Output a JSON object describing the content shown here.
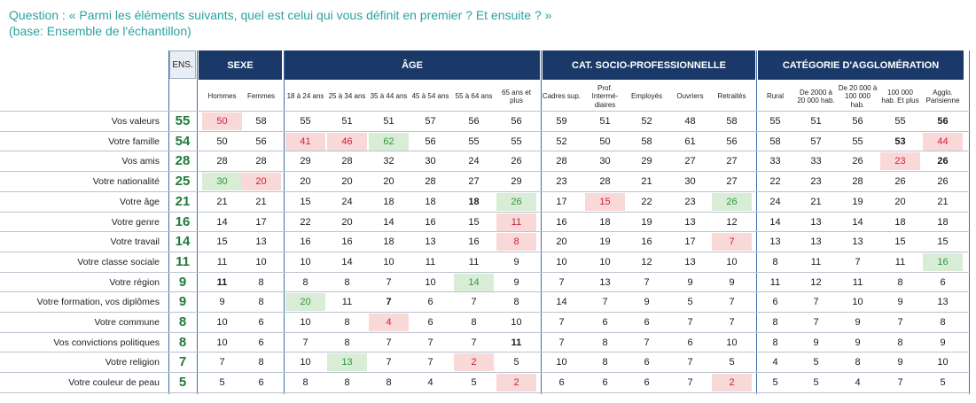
{
  "question": {
    "line1": "Question : « Parmi les éléments suivants, quel est celui qui vous définit en premier ? Et ensuite ? »",
    "line2": "(base: Ensemble de l'échantillon)"
  },
  "colors": {
    "title": "#2aa3a0",
    "header_band": "#1b3968",
    "ens_value": "#1f7a3a",
    "low": "#d1203a",
    "high": "#2f9a3c"
  },
  "ens_header": "ENS.",
  "groups": [
    {
      "label": "SEXE"
    },
    {
      "label": "ÂGE"
    },
    {
      "label": "CAT. SOCIO-PROFESSIONNELLE"
    },
    {
      "label": "CATÉGORIE D'AGGLOMÉRATION"
    }
  ],
  "subheaders": [
    "Hommes",
    "Femmes",
    "18 à 24 ans",
    "25 à 34 ans",
    "35 à 44 ans",
    "45 à 54 ans",
    "55 à 64 ans",
    "65 ans et plus",
    "Cadres sup.",
    "Prof. Intermé-diaires",
    "Employés",
    "Ouvriers",
    "Retraités",
    "Rural",
    "De 2000 à 20 000 hab.",
    "De 20 000 à 100 000 hab.",
    "100 000 hab. Et plus",
    "Agglo. Parisienne"
  ],
  "rows": [
    {
      "label": "Vos valeurs",
      "ens": "55",
      "values": [
        "50",
        "58",
        "55",
        "51",
        "51",
        "57",
        "56",
        "56",
        "59",
        "51",
        "52",
        "48",
        "58",
        "55",
        "51",
        "56",
        "55",
        "56"
      ]
    },
    {
      "label": "Votre famille",
      "ens": "54",
      "values": [
        "50",
        "56",
        "41",
        "46",
        "62",
        "56",
        "55",
        "55",
        "52",
        "50",
        "58",
        "61",
        "56",
        "58",
        "57",
        "55",
        "53",
        "44"
      ]
    },
    {
      "label": "Vos amis",
      "ens": "28",
      "values": [
        "28",
        "28",
        "29",
        "28",
        "32",
        "30",
        "24",
        "26",
        "28",
        "30",
        "29",
        "27",
        "27",
        "33",
        "33",
        "26",
        "23",
        "26"
      ]
    },
    {
      "label": "Votre nationalité",
      "ens": "25",
      "values": [
        "30",
        "20",
        "20",
        "20",
        "20",
        "28",
        "27",
        "29",
        "23",
        "28",
        "21",
        "30",
        "27",
        "22",
        "23",
        "28",
        "26",
        "26"
      ]
    },
    {
      "label": "Votre âge",
      "ens": "21",
      "values": [
        "21",
        "21",
        "15",
        "24",
        "18",
        "18",
        "18",
        "26",
        "17",
        "15",
        "22",
        "23",
        "26",
        "24",
        "21",
        "19",
        "20",
        "21"
      ]
    },
    {
      "label": "Votre genre",
      "ens": "16",
      "values": [
        "14",
        "17",
        "22",
        "20",
        "14",
        "16",
        "15",
        "11",
        "16",
        "18",
        "19",
        "13",
        "12",
        "14",
        "13",
        "14",
        "18",
        "18"
      ]
    },
    {
      "label": "Votre travail",
      "ens": "14",
      "values": [
        "15",
        "13",
        "16",
        "16",
        "18",
        "13",
        "16",
        "8",
        "20",
        "19",
        "16",
        "17",
        "7",
        "13",
        "13",
        "13",
        "15",
        "15"
      ]
    },
    {
      "label": "Votre classe sociale",
      "ens": "11",
      "values": [
        "11",
        "10",
        "10",
        "14",
        "10",
        "11",
        "11",
        "9",
        "10",
        "10",
        "12",
        "13",
        "10",
        "8",
        "11",
        "7",
        "11",
        "16"
      ]
    },
    {
      "label": "Votre région",
      "ens": "9",
      "values": [
        "11",
        "8",
        "8",
        "8",
        "7",
        "10",
        "14",
        "9",
        "7",
        "13",
        "7",
        "9",
        "9",
        "11",
        "12",
        "11",
        "8",
        "6"
      ]
    },
    {
      "label": "Votre formation, vos diplômes",
      "ens": "9",
      "values": [
        "9",
        "8",
        "20",
        "11",
        "7",
        "6",
        "7",
        "8",
        "14",
        "7",
        "9",
        "5",
        "7",
        "6",
        "7",
        "10",
        "9",
        "13"
      ]
    },
    {
      "label": "Votre commune",
      "ens": "8",
      "values": [
        "10",
        "6",
        "10",
        "8",
        "4",
        "6",
        "8",
        "10",
        "7",
        "6",
        "6",
        "7",
        "7",
        "8",
        "7",
        "9",
        "7",
        "8"
      ]
    },
    {
      "label": "Vos convictions politiques",
      "ens": "8",
      "values": [
        "10",
        "6",
        "7",
        "8",
        "7",
        "7",
        "7",
        "11",
        "7",
        "8",
        "7",
        "6",
        "10",
        "8",
        "9",
        "9",
        "8",
        "9"
      ]
    },
    {
      "label": "Votre religion",
      "ens": "7",
      "values": [
        "7",
        "8",
        "10",
        "13",
        "7",
        "7",
        "2",
        "5",
        "10",
        "8",
        "6",
        "7",
        "5",
        "4",
        "5",
        "8",
        "9",
        "10"
      ]
    },
    {
      "label": "Votre couleur de peau",
      "ens": "5",
      "values": [
        "5",
        "6",
        "8",
        "8",
        "8",
        "4",
        "5",
        "2",
        "6",
        "6",
        "6",
        "7",
        "2",
        "5",
        "5",
        "4",
        "7",
        "5"
      ]
    }
  ],
  "highlights_low": [
    [
      0,
      0
    ],
    [
      1,
      2
    ],
    [
      1,
      3
    ],
    [
      1,
      17
    ],
    [
      3,
      1
    ],
    [
      4,
      7
    ],
    [
      4,
      9
    ],
    [
      5,
      7
    ],
    [
      6,
      7
    ],
    [
      6,
      12
    ],
    [
      10,
      4
    ],
    [
      12,
      6
    ],
    [
      13,
      7
    ],
    [
      13,
      12
    ],
    [
      2,
      16
    ]
  ],
  "highlights_high": [
    [
      1,
      4
    ],
    [
      3,
      0
    ],
    [
      4,
      12
    ],
    [
      7,
      17
    ],
    [
      8,
      6
    ],
    [
      9,
      2
    ],
    [
      12,
      3
    ],
    [
      4,
      7
    ]
  ],
  "bold_cells": [
    [
      0,
      17
    ],
    [
      1,
      16
    ],
    [
      2,
      17
    ],
    [
      4,
      6
    ],
    [
      8,
      0
    ],
    [
      9,
      4
    ],
    [
      11,
      7
    ]
  ]
}
